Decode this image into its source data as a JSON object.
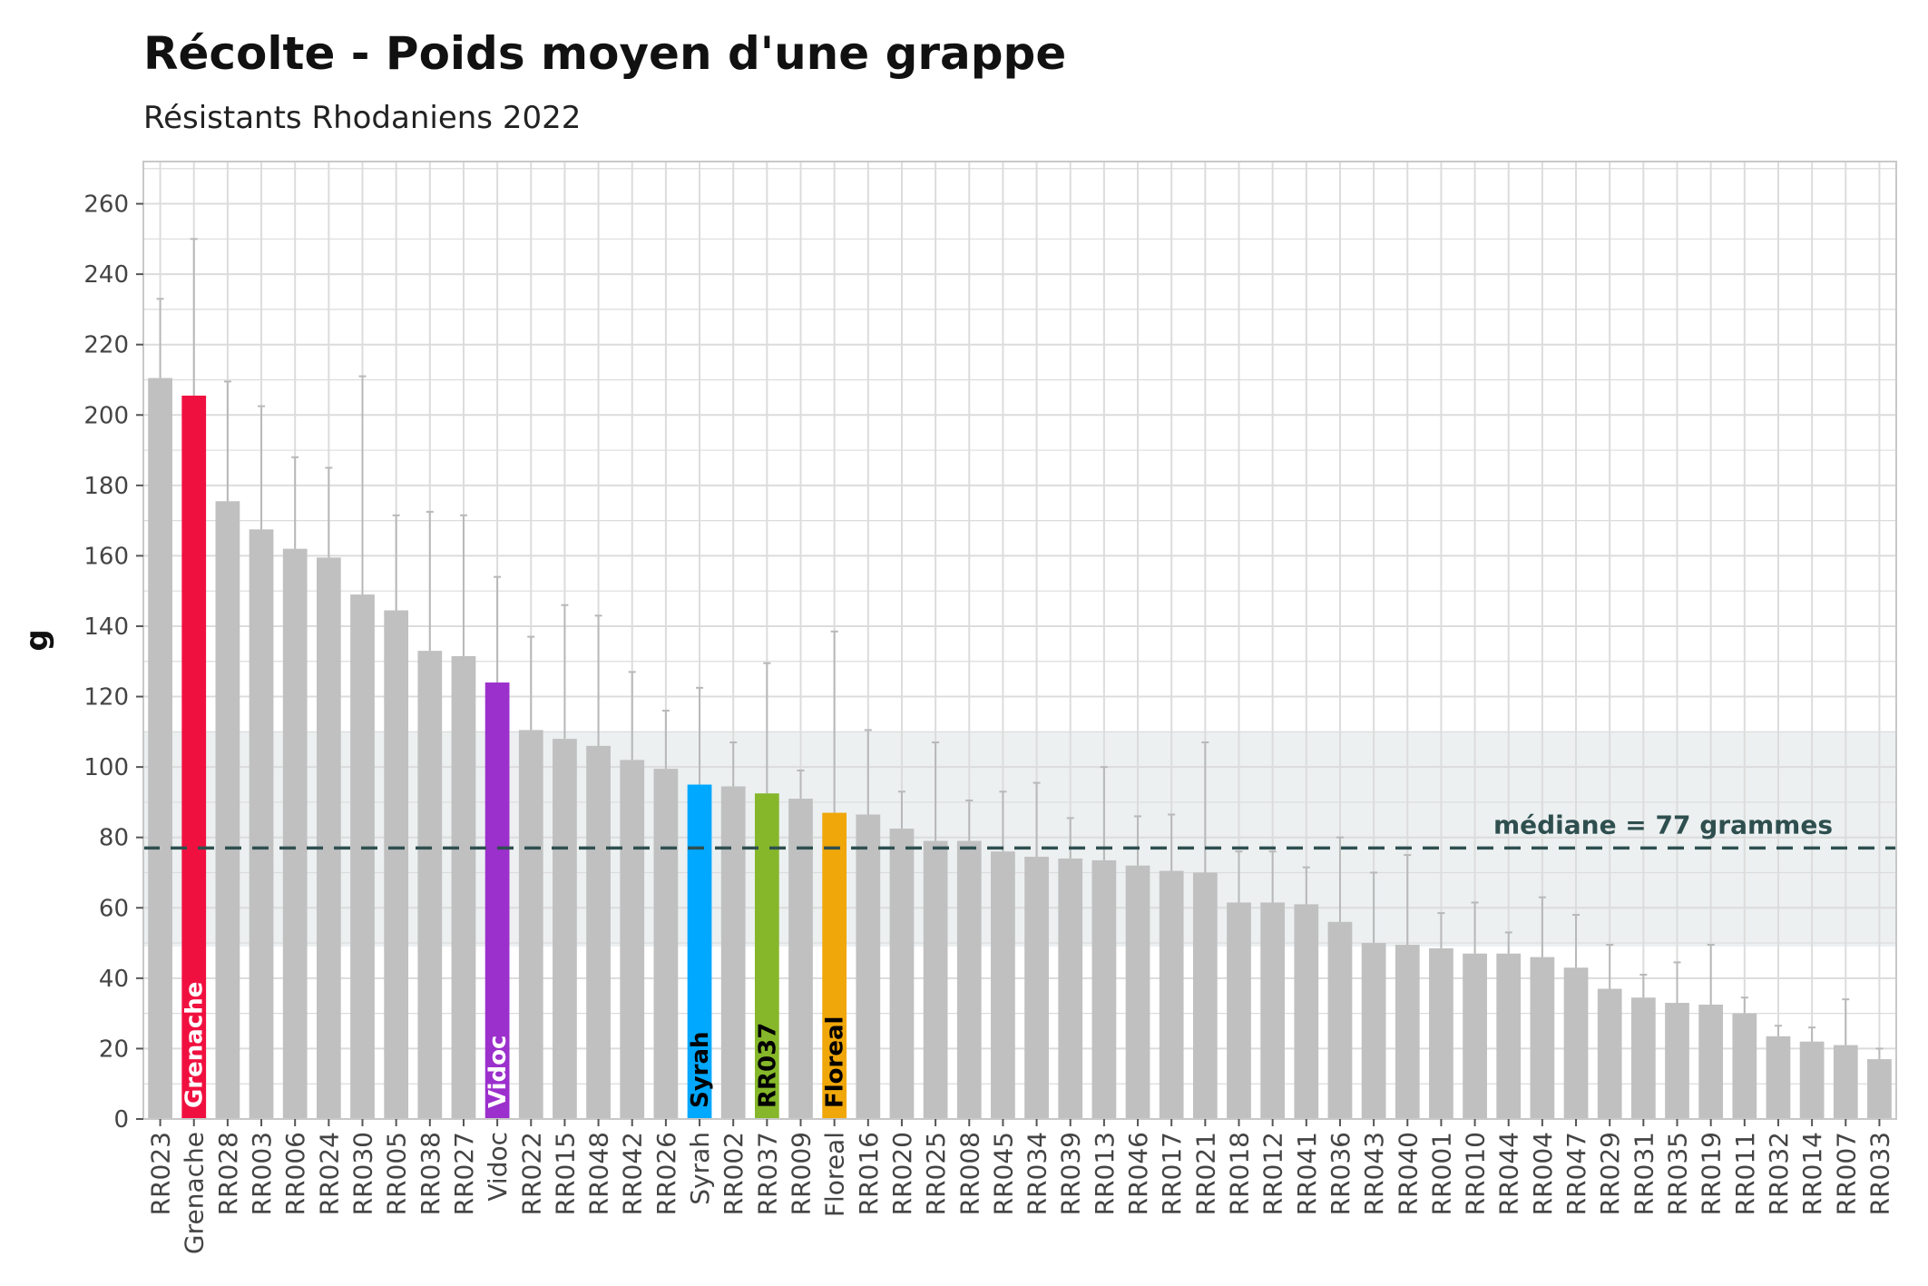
{
  "title": "Récolte - Poids moyen d'une grappe",
  "subtitle": "Résistants Rhodaniens 2022",
  "chart_data": {
    "type": "bar",
    "ylabel": "g",
    "xlabel": "",
    "ylim": [
      0,
      272
    ],
    "yticks": [
      0,
      20,
      40,
      60,
      80,
      100,
      120,
      140,
      160,
      180,
      200,
      220,
      240,
      260
    ],
    "grid": true,
    "categories": [
      "RR023",
      "Grenache",
      "RR028",
      "RR003",
      "RR006",
      "RR024",
      "RR030",
      "RR005",
      "RR038",
      "RR027",
      "Vidoc",
      "RR022",
      "RR015",
      "RR048",
      "RR042",
      "RR026",
      "Syrah",
      "RR002",
      "RR037",
      "RR009",
      "Floreal",
      "RR016",
      "RR020",
      "RR025",
      "RR008",
      "RR045",
      "RR034",
      "RR039",
      "RR013",
      "RR046",
      "RR017",
      "RR021",
      "RR018",
      "RR012",
      "RR041",
      "RR036",
      "RR043",
      "RR040",
      "RR001",
      "RR010",
      "RR044",
      "RR004",
      "RR047",
      "RR029",
      "RR031",
      "RR035",
      "RR019",
      "RR011",
      "RR032",
      "RR014",
      "RR007",
      "RR033"
    ],
    "values": [
      210.5,
      205.5,
      175.5,
      167.5,
      162,
      159.5,
      149,
      144.5,
      133,
      131.5,
      124,
      110.5,
      108,
      106,
      102,
      99.5,
      95,
      94.5,
      92.5,
      91,
      87,
      86.5,
      82.5,
      79,
      79,
      76,
      74.5,
      74,
      73.5,
      72,
      70.5,
      70,
      61.5,
      61.5,
      61,
      56,
      50,
      49.5,
      48.5,
      47,
      47,
      46,
      43,
      37,
      34.5,
      33,
      32.5,
      30,
      23.5,
      22,
      21,
      17
    ],
    "error_upper": [
      233,
      250,
      209.5,
      202.5,
      188,
      185,
      211,
      171.5,
      172.5,
      171.5,
      154,
      137,
      146,
      143,
      127,
      116,
      122.5,
      107,
      129.5,
      99,
      138.5,
      110.5,
      93,
      107,
      90.5,
      93,
      95.5,
      85.5,
      100,
      86,
      86.5,
      107,
      76,
      76,
      71.5,
      80,
      70,
      75,
      58.5,
      61.5,
      53,
      63,
      58,
      49.5,
      41,
      44.5,
      49.5,
      34.5,
      26.5,
      26,
      34,
      20
    ],
    "colors": {
      "default": "#C0C0C0",
      "Grenache": "#F0103F",
      "Vidoc": "#9B30CC",
      "Syrah": "#00A8FF",
      "RR037": "#86B72A",
      "Floreal": "#F0A70A",
      "band": "#ECF0F1",
      "median": "#2F4F4F"
    },
    "highlight_labels": [
      {
        "category": "Grenache",
        "text": "Grenache",
        "color": "#ffffff"
      },
      {
        "category": "Vidoc",
        "text": "Vidoc",
        "color": "#ffffff"
      },
      {
        "category": "Syrah",
        "text": "Syrah",
        "color": "#000000"
      },
      {
        "category": "RR037",
        "text": "RR037",
        "color": "#000000"
      },
      {
        "category": "Floreal",
        "text": "Floreal",
        "color": "#000000"
      }
    ],
    "median": {
      "value": 77,
      "label": "médiane = 77 grammes"
    },
    "band": [
      49,
      110
    ]
  }
}
